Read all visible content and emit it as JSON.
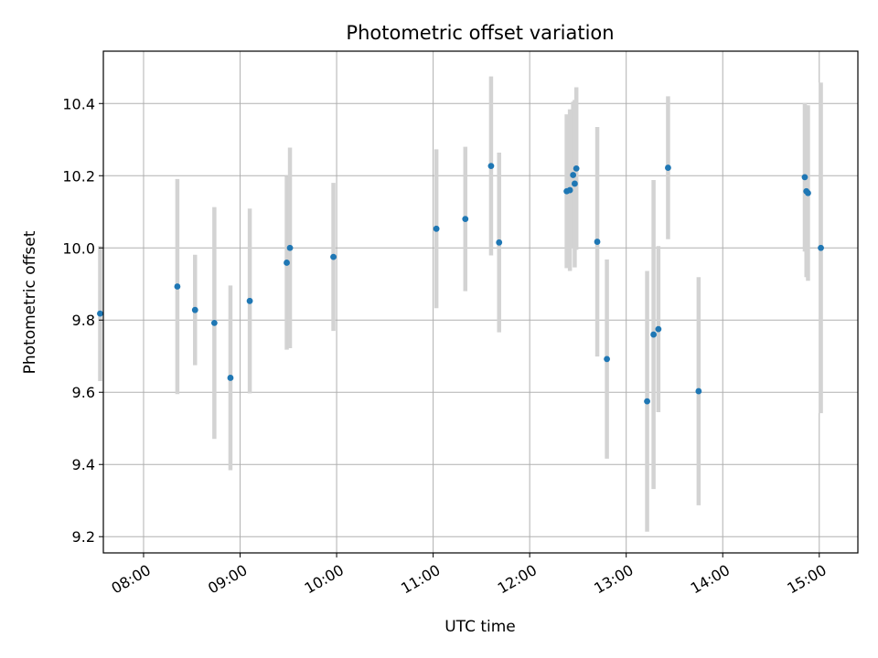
{
  "chart_data": {
    "type": "scatter",
    "title": "Photometric offset variation",
    "xlabel": "UTC time",
    "ylabel": "Photometric offset",
    "xlim": [
      "07:35",
      "15:24"
    ],
    "ylim": [
      9.155,
      10.545
    ],
    "x_ticks": [
      "08:00",
      "09:00",
      "10:00",
      "11:00",
      "12:00",
      "13:00",
      "14:00",
      "15:00"
    ],
    "y_ticks": [
      9.2,
      9.4,
      9.6,
      9.8,
      10.0,
      10.2,
      10.4
    ],
    "y_tick_labels": [
      "9.2",
      "9.4",
      "9.6",
      "9.8",
      "10.0",
      "10.2",
      "10.4"
    ],
    "grid": true,
    "colors": {
      "point": "#1f77b4",
      "errorbar": "#d3d3d3",
      "grid": "#b0b0b0"
    },
    "points": [
      {
        "x": "07:33",
        "y": 9.818,
        "err": 0.187
      },
      {
        "x": "08:21",
        "y": 9.893,
        "err": 0.298
      },
      {
        "x": "08:32",
        "y": 9.828,
        "err": 0.153
      },
      {
        "x": "08:44",
        "y": 9.792,
        "err": 0.321
      },
      {
        "x": "08:54",
        "y": 9.64,
        "err": 0.256
      },
      {
        "x": "09:06",
        "y": 9.853,
        "err": 0.256
      },
      {
        "x": "09:29",
        "y": 9.959,
        "err": 0.241
      },
      {
        "x": "09:31",
        "y": 10.0,
        "err": 0.278
      },
      {
        "x": "09:58",
        "y": 9.975,
        "err": 0.205
      },
      {
        "x": "11:02",
        "y": 10.053,
        "err": 0.22
      },
      {
        "x": "11:20",
        "y": 10.08,
        "err": 0.2
      },
      {
        "x": "11:36",
        "y": 10.227,
        "err": 0.248
      },
      {
        "x": "11:41",
        "y": 10.015,
        "err": 0.249
      },
      {
        "x": "12:23",
        "y": 10.157,
        "err": 0.213
      },
      {
        "x": "12:25",
        "y": 10.16,
        "err": 0.224
      },
      {
        "x": "12:27",
        "y": 10.202,
        "err": 0.203
      },
      {
        "x": "12:28",
        "y": 10.178,
        "err": 0.232
      },
      {
        "x": "12:29",
        "y": 10.22,
        "err": 0.225
      },
      {
        "x": "12:42",
        "y": 10.017,
        "err": 0.318
      },
      {
        "x": "12:48",
        "y": 9.692,
        "err": 0.276
      },
      {
        "x": "13:13",
        "y": 9.575,
        "err": 0.361
      },
      {
        "x": "13:17",
        "y": 9.76,
        "err": 0.428
      },
      {
        "x": "13:20",
        "y": 9.775,
        "err": 0.23
      },
      {
        "x": "13:26",
        "y": 10.222,
        "err": 0.198
      },
      {
        "x": "13:45",
        "y": 9.603,
        "err": 0.316
      },
      {
        "x": "14:51",
        "y": 10.196,
        "err": 0.206
      },
      {
        "x": "14:52",
        "y": 10.157,
        "err": 0.238
      },
      {
        "x": "14:53",
        "y": 10.152,
        "err": 0.243
      },
      {
        "x": "15:01",
        "y": 10.0,
        "err": 0.458
      }
    ]
  }
}
